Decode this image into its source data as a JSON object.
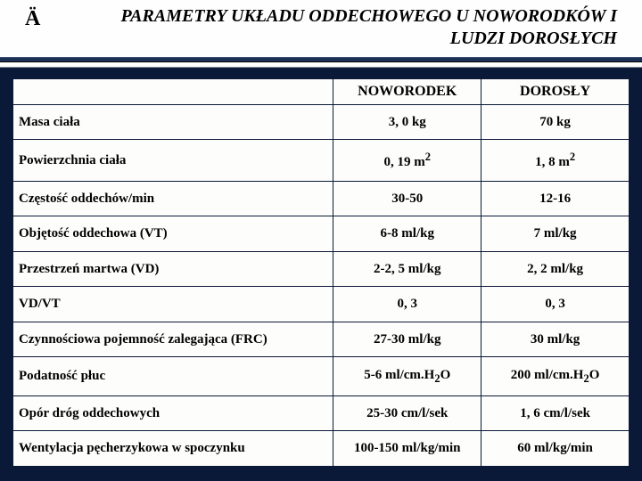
{
  "colors": {
    "page_bg": "#0a1938",
    "header_bg": "#fefefe",
    "table_bg": "#fdfdfb",
    "border": "#0a1938",
    "text": "#000000",
    "underline": "#1b2f57"
  },
  "title": {
    "arrow": "Ä",
    "line1": "PARAMETRY UKŁADU ODDECHOWEGO U NOWORODKÓW I",
    "line2": "LUDZI DOROSŁYCH"
  },
  "table": {
    "header_blank": "",
    "header_neonate": "NOWORODEK",
    "header_adult": "DOROSŁY",
    "col_widths_pct": [
      52,
      24,
      24
    ],
    "rows": [
      {
        "param": "Masa ciała",
        "neonate": "3, 0 kg",
        "adult": "70 kg"
      },
      {
        "param": "Powierzchnia ciała",
        "neonate": "0, 19 m<sup>2</sup>",
        "adult": "1, 8 m<sup>2</sup>"
      },
      {
        "param": "Częstość oddechów/min",
        "neonate": "30-50",
        "adult": "12-16"
      },
      {
        "param": "Objętość oddechowa (VT)",
        "neonate": "6-8 ml/kg",
        "adult": "7 ml/kg"
      },
      {
        "param": "Przestrzeń martwa (VD)",
        "neonate": "2-2, 5 ml/kg",
        "adult": "2, 2 ml/kg"
      },
      {
        "param": "VD/VT",
        "neonate": "0, 3",
        "adult": "0, 3"
      },
      {
        "param": "Czynnościowa pojemność zalegająca (FRC)",
        "neonate": "27-30 ml/kg",
        "adult": "30 ml/kg"
      },
      {
        "param": "Podatność płuc",
        "neonate": "5-6 ml/cm.H<sub>2</sub>O",
        "adult": "200 ml/cm.H<sub>2</sub>O"
      },
      {
        "param": "Opór dróg oddechowych",
        "neonate": "25-30 cm/l/sek",
        "adult": "1, 6 cm/l/sek"
      },
      {
        "param": "Wentylacja pęcherzykowa w spoczynku",
        "neonate": "100-150 ml/kg/min",
        "adult": "60 ml/kg/min"
      }
    ]
  }
}
